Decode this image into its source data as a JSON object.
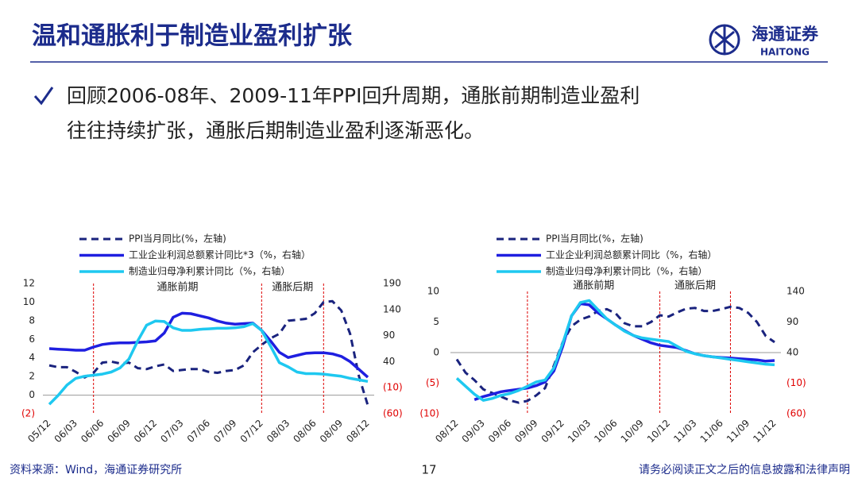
{
  "header": {
    "title": "温和通胀利于制造业盈利扩张",
    "logo_cn": "海通证券",
    "logo_en": "HAITONG"
  },
  "bullet": {
    "lines": [
      "回顾2006-08年、2009-11年PPI回升周期，通胀前期制造业盈利",
      "往往持续扩张，通胀后期制造业盈利逐渐恶化。"
    ]
  },
  "footer": {
    "source": "资料来源：Wind，海通证券研究所",
    "page": "17",
    "disclaimer": "请务必阅读正文之后的信息披露和法律声明"
  },
  "chart_data": [
    {
      "type": "line",
      "categories": [
        "05/12",
        null,
        null,
        "06/03",
        null,
        null,
        "06/06",
        null,
        null,
        "06/09",
        null,
        null,
        "06/12",
        null,
        null,
        "07/03",
        null,
        null,
        "07/06",
        null,
        null,
        "07/09",
        null,
        null,
        "07/12",
        null,
        null,
        "08/03",
        null,
        null,
        "08/06",
        null,
        null,
        "08/09",
        null,
        null,
        "08/12"
      ],
      "ylim": [
        -2,
        12
      ],
      "yticks": [
        {
          "value": -2,
          "label": "(2)"
        },
        0,
        2,
        4,
        6,
        8,
        10,
        12
      ],
      "y2lim": [
        -60,
        190
      ],
      "y2ticks": [
        {
          "value": -60,
          "label": "(60)"
        },
        {
          "value": -10,
          "label": "(10)"
        },
        40,
        90,
        140,
        190
      ],
      "vlines": [
        5,
        24,
        31
      ],
      "annotations": [
        "通胀前期",
        "通胀后期"
      ],
      "series": [
        {
          "name": "PPI当月同比(%，左轴)",
          "color": "#1a237e",
          "style": "dashed",
          "values": [
            3.2,
            3.0,
            3.0,
            2.5,
            1.9,
            2.4,
            3.5,
            3.6,
            3.4,
            3.5,
            2.9,
            2.8,
            3.1,
            3.3,
            2.6,
            2.7,
            2.8,
            2.8,
            2.5,
            2.4,
            2.6,
            2.7,
            3.2,
            4.6,
            5.4,
            6.1,
            6.6,
            8.0,
            8.1,
            8.2,
            8.8,
            10.0,
            10.1,
            9.1,
            6.6,
            2.0,
            -1.1
          ]
        },
        {
          "name": "工业企业利润总额累计同比*3（%，右轴）",
          "color": "#1f1fe0",
          "axis": "y2",
          "values": [
            65,
            64,
            63,
            62,
            62,
            68,
            73,
            75,
            76,
            76,
            77,
            78,
            80,
            95,
            125,
            133,
            132,
            128,
            124,
            118,
            114,
            112,
            113,
            114,
            100,
            80,
            58,
            48,
            52,
            56,
            57,
            57,
            55,
            50,
            40,
            25,
            10
          ]
        },
        {
          "name": "制造业归母净利累计同比（%，右轴）",
          "color": "#1ec8f0",
          "axis": "y2",
          "values": [
            -42,
            -25,
            -5,
            8,
            12,
            14,
            16,
            20,
            28,
            45,
            80,
            110,
            118,
            117,
            105,
            100,
            100,
            102,
            103,
            104,
            104,
            105,
            107,
            113,
            100,
            70,
            38,
            30,
            20,
            17,
            17,
            16,
            14,
            12,
            8,
            5,
            2
          ]
        }
      ]
    },
    {
      "type": "line",
      "categories": [
        "08/12",
        null,
        null,
        "09/03",
        null,
        null,
        "09/06",
        null,
        null,
        "09/09",
        null,
        null,
        "09/12",
        null,
        null,
        "10/03",
        null,
        null,
        "10/06",
        null,
        null,
        "10/09",
        null,
        null,
        "10/12",
        null,
        null,
        "11/03",
        null,
        null,
        "11/06",
        null,
        null,
        "11/09",
        null,
        null,
        "11/12"
      ],
      "ylim": [
        -10,
        10
      ],
      "yticks": [
        {
          "value": -10,
          "label": "(10)"
        },
        {
          "value": -5,
          "label": "(5)"
        },
        0,
        5,
        10
      ],
      "y2lim": [
        -60,
        140
      ],
      "y2ticks": [
        {
          "value": -60,
          "label": "(60)"
        },
        {
          "value": -10,
          "label": "(10)"
        },
        40,
        90,
        140
      ],
      "vlines": [
        8,
        23,
        31
      ],
      "annotations": [
        "通胀前期",
        "通胀后期"
      ],
      "series": [
        {
          "name": "PPI当月同比(%，左轴)",
          "color": "#1a237e",
          "style": "dashed",
          "values": [
            -1.1,
            -3.3,
            -4.5,
            -6.0,
            -6.6,
            -7.2,
            -7.8,
            -8.2,
            -7.9,
            -7.0,
            -5.8,
            -2.1,
            1.7,
            4.3,
            5.4,
            5.9,
            6.8,
            7.1,
            6.4,
            4.8,
            4.3,
            4.3,
            5.0,
            6.1,
            5.9,
            6.6,
            7.2,
            7.3,
            6.8,
            6.8,
            7.1,
            7.5,
            7.3,
            6.5,
            5.0,
            2.7,
            1.7
          ]
        },
        {
          "name": "工业企业利润总额累计同比（%，右轴）",
          "color": "#1f1fe0",
          "axis": "y2",
          "values": [
            null,
            null,
            -37,
            -32,
            -28,
            -24,
            -22,
            -20,
            -18,
            -14,
            -8,
            10,
            50,
            100,
            120,
            118,
            105,
            95,
            85,
            76,
            68,
            62,
            56,
            52,
            50,
            48,
            43,
            38,
            35,
            33,
            32,
            31,
            30,
            29,
            28,
            26,
            27
          ]
        },
        {
          "name": "制造业归母净利累计同比（%，右轴）",
          "color": "#1ec8f0",
          "axis": "y2",
          "values": [
            -2,
            -15,
            -28,
            -38,
            -35,
            -30,
            -27,
            -22,
            -15,
            -8,
            -5,
            15,
            55,
            100,
            122,
            125,
            110,
            95,
            85,
            75,
            68,
            64,
            62,
            60,
            58,
            50,
            42,
            38,
            35,
            33,
            31,
            29,
            27,
            25,
            23,
            21,
            20
          ]
        }
      ]
    }
  ]
}
